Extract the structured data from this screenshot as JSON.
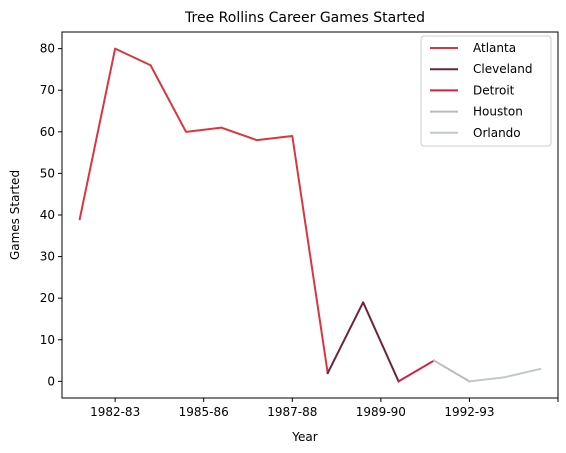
{
  "chart_data": {
    "type": "line",
    "title": "Tree Rollins Career Games Started",
    "xlabel": "Year",
    "ylabel": "Games Started",
    "ylim": [
      -4,
      84
    ],
    "xlim": [
      -0.5,
      13.5
    ],
    "yticks": [
      0,
      10,
      20,
      30,
      40,
      50,
      60,
      70,
      80
    ],
    "xticks": [
      {
        "pos": 1,
        "label": "1982-83"
      },
      {
        "pos": 3.5,
        "label": "1985-86"
      },
      {
        "pos": 6,
        "label": "1987-88"
      },
      {
        "pos": 8.5,
        "label": "1989-90"
      },
      {
        "pos": 11,
        "label": "1992-93"
      },
      {
        "pos": 13.5,
        "label": ""
      }
    ],
    "grid": false,
    "legend_position": "top-right",
    "series": [
      {
        "name": "Atlanta",
        "color": "#d9363e",
        "x": [
          0,
          1,
          2,
          3,
          4,
          5,
          6,
          7
        ],
        "y": [
          39,
          80,
          76,
          60,
          61,
          58,
          59,
          2
        ]
      },
      {
        "name": "Cleveland",
        "color": "#6b2440",
        "x": [
          7,
          8,
          9
        ],
        "y": [
          2,
          19,
          0
        ]
      },
      {
        "name": "Detroit",
        "color": "#d91e44",
        "x": [
          9,
          10
        ],
        "y": [
          0,
          5
        ]
      },
      {
        "name": "Houston",
        "color": "#bbbbbb",
        "x": [
          10,
          11
        ],
        "y": [
          5,
          0
        ]
      },
      {
        "name": "Orlando",
        "color": "#c0c8cd",
        "x": [
          11,
          12,
          13
        ],
        "y": [
          0,
          1,
          3
        ]
      }
    ]
  }
}
